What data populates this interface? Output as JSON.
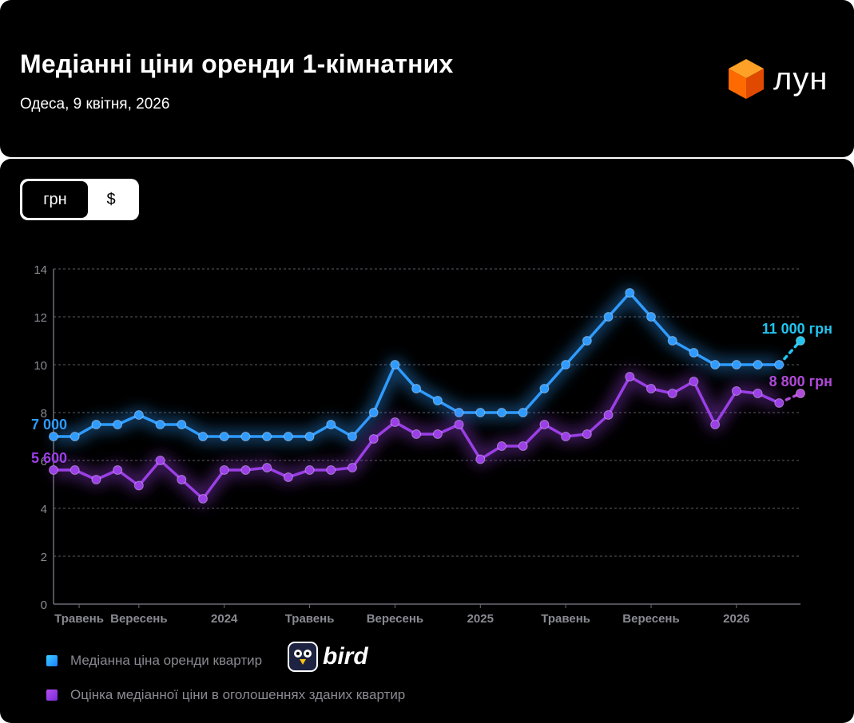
{
  "header": {
    "title": "Медіанні ціни оренди 1-кімнатних",
    "subtitle": "Одеса, 9 квітня, 2026",
    "logo_text": "лун",
    "logo_icon": "cube-icon"
  },
  "toggle": {
    "options": [
      "грн",
      "$"
    ],
    "active": "грн"
  },
  "legend": {
    "items": [
      {
        "label": "Медіанна ціна оренди квартир",
        "color": "#2f9bff"
      },
      {
        "label": "Оцінка медіанної ціни в оголошеннях зданих квартир",
        "color": "#9b3fe6"
      }
    ],
    "sponsor_text": "bird"
  },
  "chart_data": {
    "type": "line",
    "ylim": [
      0,
      14
    ],
    "yticks": [
      0,
      2,
      4,
      6,
      8,
      10,
      12,
      14
    ],
    "xlim": [
      0,
      35
    ],
    "xticks": [
      {
        "x": 1.2,
        "label": "Травень"
      },
      {
        "x": 4,
        "label": "Вересень"
      },
      {
        "x": 8,
        "label": "2024"
      },
      {
        "x": 12,
        "label": "Травень"
      },
      {
        "x": 16,
        "label": "Вересень"
      },
      {
        "x": 20,
        "label": "2025"
      },
      {
        "x": 24,
        "label": "Травень"
      },
      {
        "x": 28,
        "label": "Вересень"
      },
      {
        "x": 32,
        "label": "2026"
      }
    ],
    "grid": true,
    "series": [
      {
        "name": "Медіанна ціна оренди квартир",
        "color": "#2f9bff",
        "end_color": "#22c4f0",
        "values": [
          7.0,
          7.0,
          7.5,
          7.5,
          7.9,
          7.5,
          7.5,
          7.0,
          7.0,
          7.0,
          7.0,
          7.0,
          7.0,
          7.5,
          7.0,
          8.0,
          10.0,
          9.0,
          8.5,
          8.0,
          8.0,
          8.0,
          8.0,
          9.0,
          10.0,
          11.0,
          12.0,
          13.0,
          12.0,
          11.0,
          10.5,
          10.0,
          10.0,
          10.0,
          10.0,
          11.0
        ],
        "start_label": "7 000",
        "end_label": "11 000 грн",
        "projected_last": true
      },
      {
        "name": "Оцінка медіанної ціни в оголошеннях зданих квартир",
        "color": "#9b3fe6",
        "end_color": "#b04ad8",
        "values": [
          5.6,
          5.6,
          5.2,
          5.6,
          4.95,
          6.0,
          5.2,
          4.4,
          5.6,
          5.6,
          5.7,
          5.3,
          5.6,
          5.6,
          5.7,
          6.9,
          7.6,
          7.1,
          7.1,
          7.5,
          6.05,
          6.6,
          6.6,
          7.5,
          7.0,
          7.1,
          7.9,
          9.5,
          9.0,
          8.8,
          9.3,
          7.5,
          8.9,
          8.8,
          8.4,
          8.8
        ],
        "start_label": "5 600",
        "end_label": "8 800 грн",
        "projected_last": true
      }
    ]
  }
}
